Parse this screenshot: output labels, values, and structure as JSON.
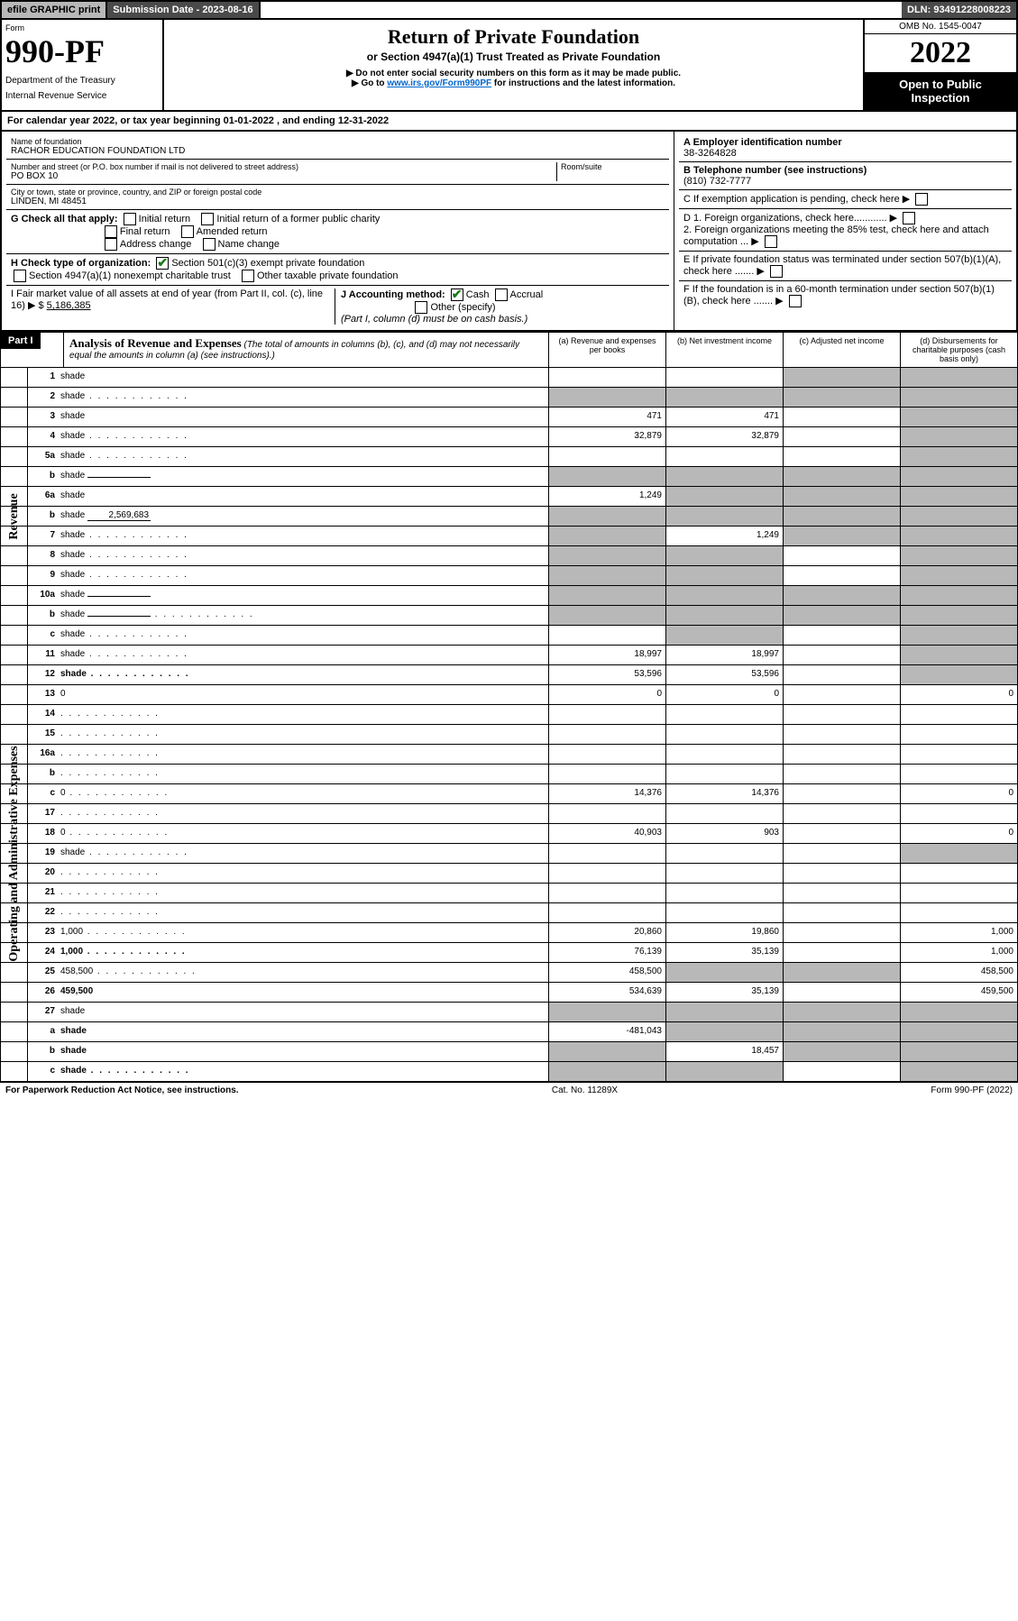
{
  "topbar": {
    "efile": "efile GRAPHIC print",
    "subdate_label": "Submission Date - 2023-08-16",
    "dln": "DLN: 93491228008223"
  },
  "header": {
    "form": "Form",
    "num": "990-PF",
    "dept": "Department of the Treasury",
    "irs": "Internal Revenue Service",
    "title": "Return of Private Foundation",
    "sub": "or Section 4947(a)(1) Trust Treated as Private Foundation",
    "warn1": "▶ Do not enter social security numbers on this form as it may be made public.",
    "warn2_pre": "▶ Go to ",
    "warn2_link": "www.irs.gov/Form990PF",
    "warn2_post": " for instructions and the latest information.",
    "omb": "OMB No. 1545-0047",
    "year": "2022",
    "open": "Open to Public Inspection"
  },
  "calyear": {
    "pre": "For calendar year 2022, or tax year beginning ",
    "begin": "01-01-2022",
    "mid": " , and ending ",
    "end": "12-31-2022"
  },
  "info": {
    "name_label": "Name of foundation",
    "name": "RACHOR EDUCATION FOUNDATION LTD",
    "addr_label": "Number and street (or P.O. box number if mail is not delivered to street address)",
    "addr": "PO BOX 10",
    "room_label": "Room/suite",
    "city_label": "City or town, state or province, country, and ZIP or foreign postal code",
    "city": "LINDEN, MI  48451",
    "ein_label": "A Employer identification number",
    "ein": "38-3264828",
    "tel_label": "B Telephone number (see instructions)",
    "tel": "(810) 732-7777",
    "c_label": "C If exemption application is pending, check here",
    "d1": "D 1. Foreign organizations, check here............",
    "d2": "2. Foreign organizations meeting the 85% test, check here and attach computation ...",
    "e": "E  If private foundation status was terminated under section 507(b)(1)(A), check here .......",
    "f": "F  If the foundation is in a 60-month termination under section 507(b)(1)(B), check here .......",
    "g_label": "G Check all that apply:",
    "g_opts": [
      "Initial return",
      "Initial return of a former public charity",
      "Final return",
      "Amended return",
      "Address change",
      "Name change"
    ],
    "h_label": "H Check type of organization:",
    "h1": "Section 501(c)(3) exempt private foundation",
    "h2": "Section 4947(a)(1) nonexempt charitable trust",
    "h3": "Other taxable private foundation",
    "i_label": "I Fair market value of all assets at end of year (from Part II, col. (c), line 16) ▶ $",
    "i_val": "5,186,385",
    "j_label": "J Accounting method:",
    "j_cash": "Cash",
    "j_accrual": "Accrual",
    "j_other": "Other (specify)",
    "j_note": "(Part I, column (d) must be on cash basis.)"
  },
  "part1": {
    "label": "Part I",
    "title": "Analysis of Revenue and Expenses",
    "title_note": "(The total of amounts in columns (b), (c), and (d) may not necessarily equal the amounts in column (a) (see instructions).)",
    "col_a": "(a)  Revenue and expenses per books",
    "col_b": "(b)  Net investment income",
    "col_c": "(c)  Adjusted net income",
    "col_d": "(d)  Disbursements for charitable purposes (cash basis only)"
  },
  "sides": {
    "rev": "Revenue",
    "exp": "Operating and Administrative Expenses"
  },
  "rows": [
    {
      "n": "1",
      "d": "shade",
      "a": "",
      "b": "",
      "c": "shade"
    },
    {
      "n": "2",
      "d": "shade",
      "dots": true,
      "a": "shade",
      "b": "shade",
      "c": "shade",
      "bold": false
    },
    {
      "n": "3",
      "d": "shade",
      "a": "471",
      "b": "471",
      "c": ""
    },
    {
      "n": "4",
      "d": "shade",
      "dots": true,
      "a": "32,879",
      "b": "32,879",
      "c": ""
    },
    {
      "n": "5a",
      "d": "shade",
      "dots": true,
      "a": "",
      "b": "",
      "c": ""
    },
    {
      "n": "b",
      "d": "shade",
      "inline": "",
      "a": "shade",
      "b": "shade",
      "c": "shade"
    },
    {
      "n": "6a",
      "d": "shade",
      "a": "1,249",
      "b": "shade",
      "c": "shade"
    },
    {
      "n": "b",
      "d": "shade",
      "inline": "2,569,683",
      "a": "shade",
      "b": "shade",
      "c": "shade"
    },
    {
      "n": "7",
      "d": "shade",
      "dots": true,
      "a": "shade",
      "b": "1,249",
      "c": "shade"
    },
    {
      "n": "8",
      "d": "shade",
      "dots": true,
      "a": "shade",
      "b": "shade",
      "c": ""
    },
    {
      "n": "9",
      "d": "shade",
      "dots": true,
      "a": "shade",
      "b": "shade",
      "c": ""
    },
    {
      "n": "10a",
      "d": "shade",
      "inline": "",
      "a": "shade",
      "b": "shade",
      "c": "shade"
    },
    {
      "n": "b",
      "d": "shade",
      "dots": true,
      "inline": "",
      "a": "shade",
      "b": "shade",
      "c": "shade"
    },
    {
      "n": "c",
      "d": "shade",
      "dots": true,
      "a": "",
      "b": "shade",
      "c": ""
    },
    {
      "n": "11",
      "d": "shade",
      "dots": true,
      "a": "18,997",
      "b": "18,997",
      "c": ""
    },
    {
      "n": "12",
      "d": "shade",
      "dots": true,
      "bold": true,
      "a": "53,596",
      "b": "53,596",
      "c": ""
    },
    {
      "n": "13",
      "d": "0",
      "a": "0",
      "b": "0",
      "c": ""
    },
    {
      "n": "14",
      "d": "",
      "dots": true,
      "a": "",
      "b": "",
      "c": ""
    },
    {
      "n": "15",
      "d": "",
      "dots": true,
      "a": "",
      "b": "",
      "c": ""
    },
    {
      "n": "16a",
      "d": "",
      "dots": true,
      "a": "",
      "b": "",
      "c": ""
    },
    {
      "n": "b",
      "d": "",
      "dots": true,
      "a": "",
      "b": "",
      "c": ""
    },
    {
      "n": "c",
      "d": "0",
      "dots": true,
      "a": "14,376",
      "b": "14,376",
      "c": ""
    },
    {
      "n": "17",
      "d": "",
      "dots": true,
      "a": "",
      "b": "",
      "c": ""
    },
    {
      "n": "18",
      "d": "0",
      "dots": true,
      "a": "40,903",
      "b": "903",
      "c": ""
    },
    {
      "n": "19",
      "d": "shade",
      "dots": true,
      "a": "",
      "b": "",
      "c": ""
    },
    {
      "n": "20",
      "d": "",
      "dots": true,
      "a": "",
      "b": "",
      "c": ""
    },
    {
      "n": "21",
      "d": "",
      "dots": true,
      "a": "",
      "b": "",
      "c": ""
    },
    {
      "n": "22",
      "d": "",
      "dots": true,
      "a": "",
      "b": "",
      "c": ""
    },
    {
      "n": "23",
      "d": "1,000",
      "dots": true,
      "a": "20,860",
      "b": "19,860",
      "c": ""
    },
    {
      "n": "24",
      "d": "1,000",
      "dots": true,
      "bold": true,
      "a": "76,139",
      "b": "35,139",
      "c": ""
    },
    {
      "n": "25",
      "d": "458,500",
      "dots": true,
      "a": "458,500",
      "b": "shade",
      "c": "shade"
    },
    {
      "n": "26",
      "d": "459,500",
      "bold": true,
      "a": "534,639",
      "b": "35,139",
      "c": ""
    },
    {
      "n": "27",
      "d": "shade",
      "a": "shade",
      "b": "shade",
      "c": "shade"
    },
    {
      "n": "a",
      "d": "shade",
      "bold": true,
      "a": "-481,043",
      "b": "shade",
      "c": "shade"
    },
    {
      "n": "b",
      "d": "shade",
      "bold": true,
      "a": "shade",
      "b": "18,457",
      "c": "shade"
    },
    {
      "n": "c",
      "d": "shade",
      "dots": true,
      "bold": true,
      "a": "shade",
      "b": "shade",
      "c": ""
    }
  ],
  "footer": {
    "left": "For Paperwork Reduction Act Notice, see instructions.",
    "mid": "Cat. No. 11289X",
    "right": "Form 990-PF (2022)"
  }
}
